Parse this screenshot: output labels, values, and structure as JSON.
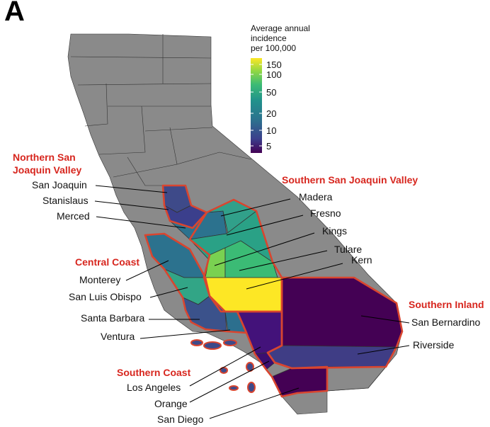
{
  "panel_label": "A",
  "legend": {
    "title_lines": [
      "Average annual",
      "incidence",
      "per 100,000"
    ],
    "ticks": [
      "150",
      "100",
      "50",
      "20",
      "10",
      "5"
    ],
    "colors": {
      "low": "#3b0f70",
      "mid_low": "#3e4a89",
      "mid": "#26828e",
      "mid_high": "#35b779",
      "high_green": "#6ece58",
      "max": "#fde725"
    }
  },
  "regions": {
    "northern_san_joaquin_valley": [
      "Northern San",
      "Joaquin Valley"
    ],
    "southern_san_joaquin_valley": "Southern San Joaquin Valley",
    "central_coast": "Central Coast",
    "southern_inland": "Southern Inland",
    "southern_coast": "Southern Coast"
  },
  "counties": {
    "san_joaquin": "San Joaquin",
    "stanislaus": "Stanislaus",
    "merced": "Merced",
    "madera": "Madera",
    "fresno": "Fresno",
    "kings": "Kings",
    "tulare": "Tulare",
    "kern": "Kern",
    "monterey": "Monterey",
    "san_luis_obispo": "San Luis Obispo",
    "santa_barbara": "Santa Barbara",
    "ventura": "Ventura",
    "san_bernardino": "San Bernardino",
    "riverside": "Riverside",
    "los_angeles": "Los Angeles",
    "orange": "Orange",
    "san_diego": "San Diego"
  }
}
